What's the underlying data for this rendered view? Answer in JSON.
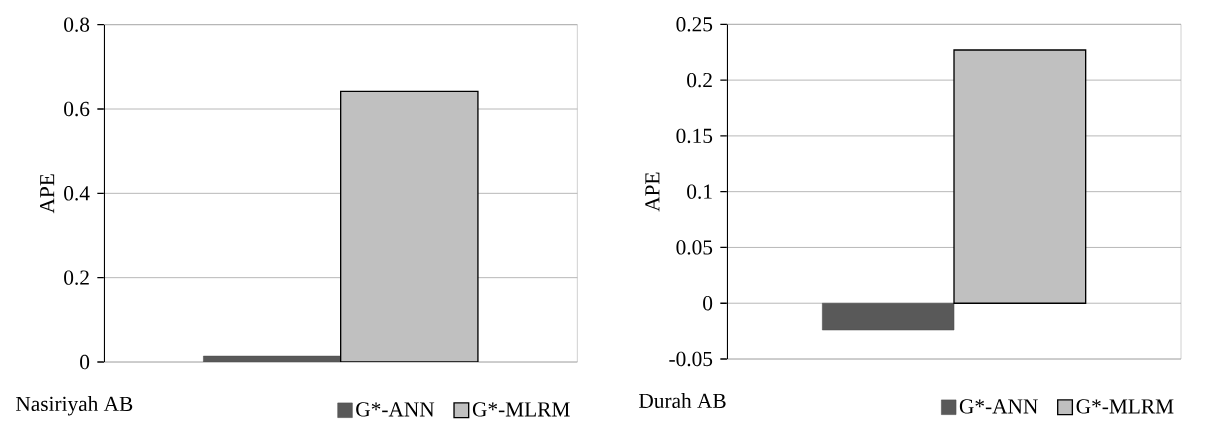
{
  "chart_data": [
    {
      "type": "bar",
      "xlabel": "Nasiriyah AB",
      "ylabel": "APE",
      "categories": [
        null
      ],
      "ylim": [
        0,
        0.8
      ],
      "yticks": [
        0,
        0.2,
        0.4,
        0.6,
        0.8
      ],
      "grid": "y",
      "legend": "bottom right",
      "series": [
        {
          "name": "G*-ANN",
          "color": "#595959",
          "values": [
            0.014
          ]
        },
        {
          "name": "G*-MLRM",
          "color": "#c0c0c0",
          "values": [
            0.642
          ]
        }
      ]
    },
    {
      "type": "bar",
      "xlabel": "Durah AB",
      "ylabel": "APE",
      "categories": [
        null
      ],
      "ylim": [
        -0.05,
        0.25
      ],
      "yticks": [
        -0.05,
        0,
        0.05,
        0.1,
        0.15,
        0.2,
        0.25
      ],
      "grid": "y",
      "legend": "bottom right",
      "series": [
        {
          "name": "G*-ANN",
          "color": "#595959",
          "values": [
            -0.024
          ]
        },
        {
          "name": "G*-MLRM",
          "color": "#c0c0c0",
          "values": [
            0.227
          ]
        }
      ]
    }
  ]
}
